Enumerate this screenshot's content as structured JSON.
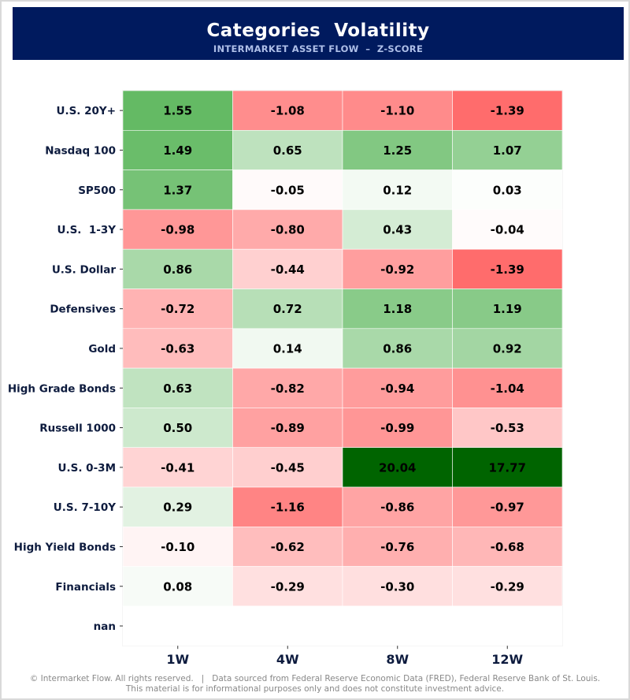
{
  "header": {
    "title": "Categories  Volatility",
    "subtitle": "INTERMARKET ASSET FLOW  –  Z-SCORE"
  },
  "colors": {
    "banner": "#001a5e",
    "positive_max": "#006400",
    "negative_max": "#ff6b6b",
    "neutral": "#ffffff"
  },
  "chart_data": {
    "type": "heatmap",
    "columns": [
      "1W",
      "4W",
      "8W",
      "12W"
    ],
    "rows": [
      "U.S. 20Y+",
      "Nasdaq 100",
      "SP500",
      "U.S.  1-3Y",
      "U.S. Dollar",
      "Defensives",
      "Gold",
      "High Grade Bonds",
      "Russell 1000",
      "U.S. 0-3M",
      "U.S. 7-10Y",
      "High Yield Bonds",
      "Financials",
      "nan"
    ],
    "values": [
      [
        1.55,
        -1.08,
        -1.1,
        -1.39
      ],
      [
        1.49,
        0.65,
        1.25,
        1.07
      ],
      [
        1.37,
        -0.05,
        0.12,
        0.03
      ],
      [
        -0.98,
        -0.8,
        0.43,
        -0.04
      ],
      [
        0.86,
        -0.44,
        -0.92,
        -1.39
      ],
      [
        -0.72,
        0.72,
        1.18,
        1.19
      ],
      [
        -0.63,
        0.14,
        0.86,
        0.92
      ],
      [
        0.63,
        -0.82,
        -0.94,
        -1.04
      ],
      [
        0.5,
        -0.89,
        -0.99,
        -0.53
      ],
      [
        -0.41,
        -0.45,
        20.04,
        17.77
      ],
      [
        0.29,
        -1.16,
        -0.86,
        -0.97
      ],
      [
        -0.1,
        -0.62,
        -0.76,
        -0.68
      ],
      [
        0.08,
        -0.29,
        -0.3,
        -0.29
      ],
      [
        null,
        null,
        null,
        null
      ]
    ],
    "grid": false,
    "legend": "none"
  },
  "footer": {
    "line1": "© Intermarket Flow. All rights reserved.   |   Data sourced from Federal Reserve Economic Data (FRED), Federal Reserve Bank of St. Louis.",
    "line2": "This material is for informational purposes only and does not constitute investment advice."
  }
}
